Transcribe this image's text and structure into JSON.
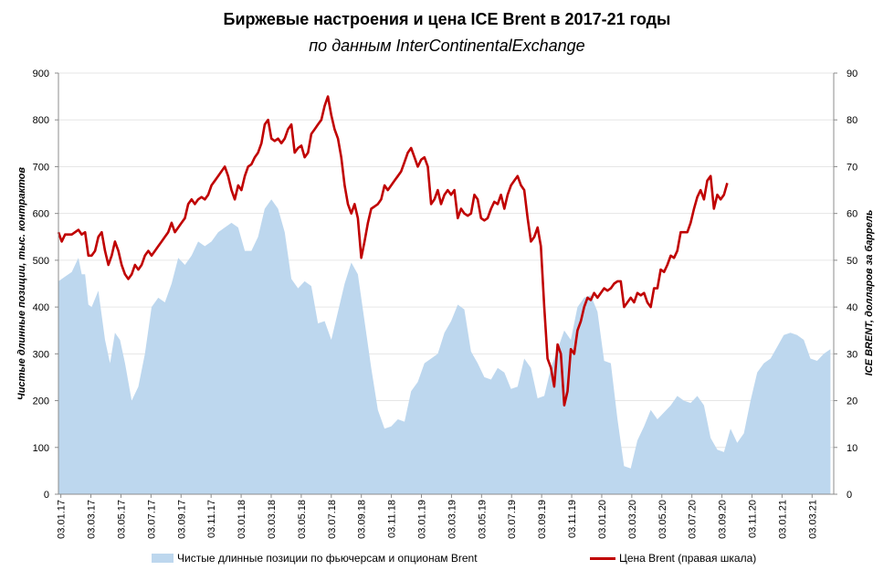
{
  "chart_data": {
    "type": "area+line",
    "title": "Биржевые настроения и цена ICE Brent в 2017-21 годы",
    "subtitle": "по данным InterContinentalExchange",
    "ylabel_left": "Чистые длинные позиции, тыс. контрактов",
    "ylabel_right": "ICE BRENT, долларов за баррель",
    "ylim_left": [
      0,
      900
    ],
    "ylim_right": [
      0,
      90
    ],
    "yticks_left": [
      "0",
      "100",
      "200",
      "300",
      "400",
      "500",
      "600",
      "700",
      "800",
      "900"
    ],
    "yticks_right": [
      "0",
      "10",
      "20",
      "30",
      "40",
      "50",
      "60",
      "70",
      "80",
      "90"
    ],
    "xticks": [
      "03.01.17",
      "03.03.17",
      "03.05.17",
      "03.07.17",
      "03.09.17",
      "03.11.17",
      "03.01.18",
      "03.03.18",
      "03.05.18",
      "03.07.18",
      "03.09.18",
      "03.11.18",
      "03.01.19",
      "03.03.19",
      "03.05.19",
      "03.07.19",
      "03.09.19",
      "03.11.19",
      "03.01.20",
      "03.03.20",
      "03.05.20",
      "03.07.20",
      "03.09.20",
      "03.11.20",
      "03.01.21",
      "03.03.21"
    ],
    "gridlines": "horizontal",
    "legend_position": "bottom",
    "series": [
      {
        "name": "Чистые длинные позиции по фьючерсам и опционам Brent",
        "type": "area",
        "axis": "left",
        "color": "#bdd7ee",
        "points": [
          [
            0,
            455
          ],
          [
            4,
            465
          ],
          [
            8,
            475
          ],
          [
            12,
            505
          ],
          [
            14,
            470
          ],
          [
            16,
            470
          ],
          [
            18,
            405
          ],
          [
            20,
            400
          ],
          [
            24,
            435
          ],
          [
            28,
            330
          ],
          [
            31,
            280
          ],
          [
            34,
            345
          ],
          [
            37,
            330
          ],
          [
            40,
            280
          ],
          [
            44,
            200
          ],
          [
            48,
            230
          ],
          [
            52,
            300
          ],
          [
            56,
            400
          ],
          [
            60,
            420
          ],
          [
            64,
            410
          ],
          [
            68,
            450
          ],
          [
            72,
            505
          ],
          [
            76,
            490
          ],
          [
            80,
            510
          ],
          [
            84,
            540
          ],
          [
            88,
            530
          ],
          [
            92,
            540
          ],
          [
            96,
            560
          ],
          [
            100,
            570
          ],
          [
            104,
            580
          ],
          [
            108,
            570
          ],
          [
            112,
            520
          ],
          [
            116,
            520
          ],
          [
            120,
            550
          ],
          [
            124,
            610
          ],
          [
            128,
            630
          ],
          [
            132,
            610
          ],
          [
            136,
            560
          ],
          [
            140,
            460
          ],
          [
            144,
            440
          ],
          [
            148,
            455
          ],
          [
            152,
            445
          ],
          [
            156,
            365
          ],
          [
            160,
            370
          ],
          [
            164,
            330
          ],
          [
            168,
            390
          ],
          [
            172,
            450
          ],
          [
            176,
            495
          ],
          [
            180,
            470
          ],
          [
            184,
            370
          ],
          [
            188,
            270
          ],
          [
            192,
            180
          ],
          [
            196,
            140
          ],
          [
            200,
            145
          ],
          [
            204,
            160
          ],
          [
            208,
            155
          ],
          [
            212,
            220
          ],
          [
            216,
            240
          ],
          [
            220,
            280
          ],
          [
            224,
            290
          ],
          [
            228,
            300
          ],
          [
            232,
            345
          ],
          [
            236,
            370
          ],
          [
            240,
            405
          ],
          [
            244,
            395
          ],
          [
            248,
            305
          ],
          [
            252,
            280
          ],
          [
            256,
            250
          ],
          [
            260,
            245
          ],
          [
            264,
            270
          ],
          [
            268,
            260
          ],
          [
            272,
            225
          ],
          [
            276,
            230
          ],
          [
            280,
            290
          ],
          [
            284,
            270
          ],
          [
            288,
            205
          ],
          [
            292,
            210
          ],
          [
            296,
            270
          ],
          [
            300,
            310
          ],
          [
            304,
            350
          ],
          [
            308,
            330
          ],
          [
            312,
            400
          ],
          [
            316,
            420
          ],
          [
            320,
            425
          ],
          [
            324,
            390
          ],
          [
            328,
            285
          ],
          [
            332,
            280
          ],
          [
            336,
            160
          ],
          [
            340,
            60
          ],
          [
            344,
            55
          ],
          [
            348,
            115
          ],
          [
            352,
            145
          ],
          [
            356,
            180
          ],
          [
            360,
            160
          ],
          [
            364,
            175
          ],
          [
            368,
            190
          ],
          [
            372,
            210
          ],
          [
            376,
            200
          ],
          [
            380,
            195
          ],
          [
            384,
            210
          ],
          [
            388,
            190
          ],
          [
            392,
            120
          ],
          [
            396,
            95
          ],
          [
            400,
            90
          ],
          [
            404,
            140
          ],
          [
            408,
            110
          ],
          [
            412,
            130
          ],
          [
            416,
            200
          ],
          [
            420,
            260
          ],
          [
            424,
            280
          ],
          [
            428,
            290
          ],
          [
            432,
            315
          ],
          [
            436,
            340
          ],
          [
            440,
            345
          ],
          [
            444,
            340
          ],
          [
            448,
            330
          ],
          [
            452,
            290
          ],
          [
            456,
            285
          ],
          [
            460,
            300
          ],
          [
            464,
            310
          ]
        ]
      },
      {
        "name": "Цена Brent (правая шкала)",
        "type": "line",
        "axis": "right",
        "color": "#c00000",
        "points": [
          [
            0,
            56
          ],
          [
            2,
            54
          ],
          [
            4,
            55.5
          ],
          [
            8,
            55.5
          ],
          [
            12,
            56.5
          ],
          [
            14,
            55.5
          ],
          [
            16,
            56
          ],
          [
            18,
            51
          ],
          [
            20,
            51
          ],
          [
            22,
            52
          ],
          [
            24,
            55
          ],
          [
            26,
            56
          ],
          [
            28,
            52
          ],
          [
            30,
            49
          ],
          [
            32,
            51
          ],
          [
            34,
            54
          ],
          [
            36,
            52
          ],
          [
            38,
            49
          ],
          [
            40,
            47
          ],
          [
            42,
            46
          ],
          [
            44,
            47
          ],
          [
            46,
            49
          ],
          [
            48,
            48
          ],
          [
            50,
            49
          ],
          [
            52,
            51
          ],
          [
            54,
            52
          ],
          [
            56,
            51
          ],
          [
            58,
            52
          ],
          [
            60,
            53
          ],
          [
            62,
            54
          ],
          [
            64,
            55
          ],
          [
            66,
            56
          ],
          [
            68,
            58
          ],
          [
            70,
            56
          ],
          [
            72,
            57
          ],
          [
            74,
            58
          ],
          [
            76,
            59
          ],
          [
            78,
            62
          ],
          [
            80,
            63
          ],
          [
            82,
            62
          ],
          [
            84,
            63
          ],
          [
            86,
            63.5
          ],
          [
            88,
            63
          ],
          [
            90,
            64
          ],
          [
            92,
            66
          ],
          [
            94,
            67
          ],
          [
            96,
            68
          ],
          [
            98,
            69
          ],
          [
            100,
            70
          ],
          [
            102,
            68
          ],
          [
            104,
            65
          ],
          [
            106,
            63
          ],
          [
            108,
            66
          ],
          [
            110,
            65
          ],
          [
            112,
            68
          ],
          [
            114,
            70
          ],
          [
            116,
            70.5
          ],
          [
            118,
            72
          ],
          [
            120,
            73
          ],
          [
            122,
            75
          ],
          [
            124,
            79
          ],
          [
            126,
            80
          ],
          [
            128,
            76
          ],
          [
            130,
            75.5
          ],
          [
            132,
            76
          ],
          [
            134,
            75
          ],
          [
            136,
            76
          ],
          [
            138,
            78
          ],
          [
            140,
            79
          ],
          [
            142,
            73
          ],
          [
            144,
            74
          ],
          [
            146,
            74.5
          ],
          [
            148,
            72
          ],
          [
            150,
            73
          ],
          [
            152,
            77
          ],
          [
            154,
            78
          ],
          [
            156,
            79
          ],
          [
            158,
            80
          ],
          [
            160,
            83
          ],
          [
            162,
            85
          ],
          [
            164,
            81
          ],
          [
            166,
            78
          ],
          [
            168,
            76
          ],
          [
            170,
            72
          ],
          [
            172,
            66
          ],
          [
            174,
            62
          ],
          [
            176,
            60
          ],
          [
            178,
            62
          ],
          [
            180,
            59
          ],
          [
            182,
            50.5
          ],
          [
            184,
            54
          ],
          [
            186,
            58
          ],
          [
            188,
            61
          ],
          [
            190,
            61.5
          ],
          [
            192,
            62
          ],
          [
            194,
            63
          ],
          [
            196,
            66
          ],
          [
            198,
            65
          ],
          [
            200,
            66
          ],
          [
            202,
            67
          ],
          [
            204,
            68
          ],
          [
            206,
            69
          ],
          [
            208,
            71
          ],
          [
            210,
            73
          ],
          [
            212,
            74
          ],
          [
            214,
            72
          ],
          [
            216,
            70
          ],
          [
            218,
            71.5
          ],
          [
            220,
            72
          ],
          [
            222,
            70
          ],
          [
            224,
            62
          ],
          [
            226,
            63
          ],
          [
            228,
            65
          ],
          [
            230,
            62
          ],
          [
            232,
            64
          ],
          [
            234,
            65
          ],
          [
            236,
            64
          ],
          [
            238,
            65
          ],
          [
            240,
            59
          ],
          [
            242,
            61
          ],
          [
            244,
            60
          ],
          [
            246,
            59.5
          ],
          [
            248,
            60
          ],
          [
            250,
            64
          ],
          [
            252,
            63
          ],
          [
            254,
            59
          ],
          [
            256,
            58.5
          ],
          [
            258,
            59
          ],
          [
            260,
            61
          ],
          [
            262,
            62.5
          ],
          [
            264,
            62
          ],
          [
            266,
            64
          ],
          [
            268,
            61
          ],
          [
            270,
            64
          ],
          [
            272,
            66
          ],
          [
            274,
            67
          ],
          [
            276,
            68
          ],
          [
            278,
            66
          ],
          [
            280,
            65
          ],
          [
            282,
            59
          ],
          [
            284,
            54
          ],
          [
            286,
            55
          ],
          [
            288,
            57
          ],
          [
            290,
            53
          ],
          [
            292,
            40
          ],
          [
            294,
            29
          ],
          [
            296,
            27
          ],
          [
            298,
            23
          ],
          [
            300,
            32
          ],
          [
            302,
            30
          ],
          [
            304,
            19
          ],
          [
            306,
            22
          ],
          [
            308,
            31
          ],
          [
            310,
            30
          ],
          [
            312,
            35
          ],
          [
            314,
            37
          ],
          [
            316,
            40
          ],
          [
            318,
            42
          ],
          [
            320,
            41.5
          ],
          [
            322,
            43
          ],
          [
            324,
            42
          ],
          [
            326,
            43
          ],
          [
            328,
            44
          ],
          [
            330,
            43.5
          ],
          [
            332,
            44
          ],
          [
            334,
            45
          ],
          [
            336,
            45.5
          ],
          [
            338,
            45.5
          ],
          [
            340,
            40
          ],
          [
            342,
            41
          ],
          [
            344,
            42
          ],
          [
            346,
            41
          ],
          [
            348,
            43
          ],
          [
            350,
            42.5
          ],
          [
            352,
            43
          ],
          [
            354,
            41
          ],
          [
            356,
            40
          ],
          [
            358,
            44
          ],
          [
            360,
            44
          ],
          [
            362,
            48
          ],
          [
            364,
            47.5
          ],
          [
            366,
            49
          ],
          [
            368,
            51
          ],
          [
            370,
            50.5
          ],
          [
            372,
            52
          ],
          [
            374,
            56
          ],
          [
            376,
            56
          ],
          [
            378,
            56
          ],
          [
            380,
            58
          ],
          [
            382,
            61
          ],
          [
            384,
            63.5
          ],
          [
            386,
            65
          ],
          [
            388,
            63
          ],
          [
            390,
            67
          ],
          [
            392,
            68
          ],
          [
            394,
            61
          ],
          [
            396,
            64
          ],
          [
            398,
            63
          ],
          [
            400,
            64
          ],
          [
            402,
            66.5
          ]
        ]
      }
    ]
  }
}
